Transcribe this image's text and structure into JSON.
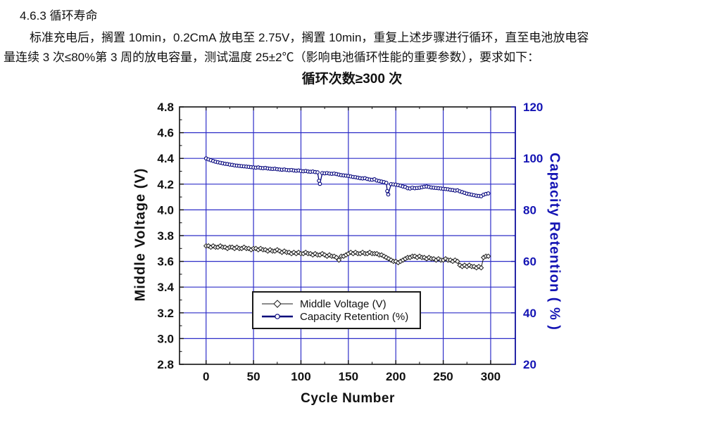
{
  "document": {
    "heading": "4.6.3 循环寿命",
    "body_line1": "标准充电后，搁置 10min，0.2CmA 放电至 2.75V，搁置 10min，重复上述步骤进行循环，直至电池放电容",
    "body_line2": "量连续 3 次≤80%第 3 周的放电容量，测试温度 25±2℃（影响电池循环性能的重要参数），要求如下："
  },
  "colors": {
    "background": "#ffffff",
    "text": "#111111",
    "grid": "#2e2ec8",
    "axis_blue": "#1414b4",
    "frame": "#111111",
    "series_voltage": "#1a1a1a",
    "series_capacity": "#00007a"
  },
  "chart_data": {
    "type": "line",
    "title": "循环次数≥300 次",
    "xlabel": "Cycle Number",
    "ylabel_left": "Middle Voltage (V)",
    "ylabel_right": "Capacity Retention ( % )",
    "grid": true,
    "legend_position": "inside-bottom-center",
    "x_axis": {
      "min": -28,
      "max": 326,
      "ticks": [
        "0",
        "50",
        "100",
        "150",
        "200",
        "250",
        "300"
      ],
      "tick_values": [
        0,
        50,
        100,
        150,
        200,
        250,
        300
      ],
      "minor_step": 25
    },
    "y_left": {
      "min": 2.8,
      "max": 4.8,
      "ticks": [
        "4.8",
        "4.6",
        "4.4",
        "4.2",
        "4.0",
        "3.8",
        "3.6",
        "3.4",
        "3.2",
        "3.0",
        "2.8"
      ],
      "tick_values": [
        4.8,
        4.6,
        4.4,
        4.2,
        4.0,
        3.8,
        3.6,
        3.4,
        3.2,
        3.0,
        2.8
      ],
      "minor_step": 0.1
    },
    "y_right": {
      "min": 20,
      "max": 120,
      "ticks": [
        "120",
        "100",
        "80",
        "60",
        "40",
        "20"
      ],
      "tick_values": [
        120,
        100,
        80,
        60,
        40,
        20
      ],
      "minor_step": 10
    },
    "series": [
      {
        "name": "Middle Voltage (V)",
        "axis": "left",
        "marker": "diamond",
        "color": "#1a1a1a",
        "points": [
          [
            0,
            3.72
          ],
          [
            2.5,
            3.72
          ],
          [
            5,
            3.71
          ],
          [
            7.5,
            3.72
          ],
          [
            10,
            3.71
          ],
          [
            12.5,
            3.71
          ],
          [
            15,
            3.72
          ],
          [
            17.5,
            3.71
          ],
          [
            20,
            3.71
          ],
          [
            22.5,
            3.7
          ],
          [
            25,
            3.71
          ],
          [
            27.5,
            3.71
          ],
          [
            30,
            3.7
          ],
          [
            32.5,
            3.71
          ],
          [
            35,
            3.7
          ],
          [
            37.5,
            3.7
          ],
          [
            40,
            3.71
          ],
          [
            42.5,
            3.7
          ],
          [
            45,
            3.7
          ],
          [
            47.5,
            3.69
          ],
          [
            50,
            3.7
          ],
          [
            52.5,
            3.7
          ],
          [
            55,
            3.69
          ],
          [
            57.5,
            3.7
          ],
          [
            60,
            3.69
          ],
          [
            62.5,
            3.69
          ],
          [
            65,
            3.68
          ],
          [
            67.5,
            3.69
          ],
          [
            70,
            3.68
          ],
          [
            72.5,
            3.68
          ],
          [
            75,
            3.69
          ],
          [
            77.5,
            3.68
          ],
          [
            80,
            3.67
          ],
          [
            82.5,
            3.68
          ],
          [
            85,
            3.67
          ],
          [
            87.5,
            3.67
          ],
          [
            90,
            3.66
          ],
          [
            92.5,
            3.67
          ],
          [
            95,
            3.66
          ],
          [
            97.5,
            3.67
          ],
          [
            100,
            3.66
          ],
          [
            102.5,
            3.66
          ],
          [
            105,
            3.67
          ],
          [
            107.5,
            3.66
          ],
          [
            110,
            3.66
          ],
          [
            112.5,
            3.65
          ],
          [
            115,
            3.66
          ],
          [
            117.5,
            3.65
          ],
          [
            120,
            3.65
          ],
          [
            122.5,
            3.66
          ],
          [
            125,
            3.65
          ],
          [
            127.5,
            3.64
          ],
          [
            130,
            3.65
          ],
          [
            132.5,
            3.64
          ],
          [
            135,
            3.64
          ],
          [
            137.5,
            3.63
          ],
          [
            140,
            3.61
          ],
          [
            142.5,
            3.64
          ],
          [
            145,
            3.64
          ],
          [
            147.5,
            3.65
          ],
          [
            150,
            3.66
          ],
          [
            152.5,
            3.67
          ],
          [
            155,
            3.66
          ],
          [
            157.5,
            3.67
          ],
          [
            160,
            3.66
          ],
          [
            162.5,
            3.66
          ],
          [
            165,
            3.67
          ],
          [
            167.5,
            3.66
          ],
          [
            170,
            3.66
          ],
          [
            172.5,
            3.67
          ],
          [
            175,
            3.66
          ],
          [
            177.5,
            3.66
          ],
          [
            180,
            3.66
          ],
          [
            182.5,
            3.65
          ],
          [
            185,
            3.65
          ],
          [
            187.5,
            3.64
          ],
          [
            190,
            3.63
          ],
          [
            192.5,
            3.62
          ],
          [
            195,
            3.61
          ],
          [
            197.5,
            3.6
          ],
          [
            200,
            3.6
          ],
          [
            202.5,
            3.59
          ],
          [
            205,
            3.6
          ],
          [
            207.5,
            3.61
          ],
          [
            210,
            3.62
          ],
          [
            212.5,
            3.63
          ],
          [
            215,
            3.63
          ],
          [
            217.5,
            3.64
          ],
          [
            220,
            3.64
          ],
          [
            222.5,
            3.63
          ],
          [
            225,
            3.64
          ],
          [
            227.5,
            3.63
          ],
          [
            230,
            3.63
          ],
          [
            232.5,
            3.62
          ],
          [
            235,
            3.63
          ],
          [
            237.5,
            3.62
          ],
          [
            240,
            3.62
          ],
          [
            242.5,
            3.61
          ],
          [
            245,
            3.62
          ],
          [
            247.5,
            3.61
          ],
          [
            250,
            3.61
          ],
          [
            252.5,
            3.62
          ],
          [
            255,
            3.61
          ],
          [
            257.5,
            3.61
          ],
          [
            260,
            3.6
          ],
          [
            262.5,
            3.61
          ],
          [
            265,
            3.6
          ],
          [
            267.5,
            3.57
          ],
          [
            270,
            3.56
          ],
          [
            272.5,
            3.57
          ],
          [
            275,
            3.56
          ],
          [
            277.5,
            3.57
          ],
          [
            280,
            3.56
          ],
          [
            282.5,
            3.56
          ],
          [
            285,
            3.55
          ],
          [
            287.5,
            3.56
          ],
          [
            290,
            3.55
          ],
          [
            292.5,
            3.63
          ],
          [
            295,
            3.64
          ],
          [
            297.5,
            3.64
          ]
        ]
      },
      {
        "name": "Capacity Retention (%)",
        "axis": "right",
        "marker": "circle",
        "color": "#00007a",
        "points": [
          [
            0,
            100
          ],
          [
            2.5,
            99.6
          ],
          [
            5,
            99.3
          ],
          [
            7.5,
            99
          ],
          [
            10,
            98.7
          ],
          [
            12.5,
            98.5
          ],
          [
            15,
            98.3
          ],
          [
            17.5,
            98.1
          ],
          [
            20,
            97.9
          ],
          [
            22.5,
            97.8
          ],
          [
            25,
            97.6
          ],
          [
            27.5,
            97.5
          ],
          [
            30,
            97.3
          ],
          [
            32.5,
            97.2
          ],
          [
            35,
            97.1
          ],
          [
            37.5,
            97
          ],
          [
            40,
            96.9
          ],
          [
            42.5,
            96.8
          ],
          [
            45,
            96.7
          ],
          [
            47.5,
            96.6
          ],
          [
            50,
            96.5
          ],
          [
            52.5,
            96.4
          ],
          [
            55,
            96.5
          ],
          [
            57.5,
            96.3
          ],
          [
            60,
            96.2
          ],
          [
            62.5,
            96.3
          ],
          [
            65,
            96.1
          ],
          [
            67.5,
            96
          ],
          [
            70,
            95.9
          ],
          [
            72.5,
            96
          ],
          [
            75,
            95.8
          ],
          [
            77.5,
            95.7
          ],
          [
            80,
            95.6
          ],
          [
            82.5,
            95.7
          ],
          [
            85,
            95.5
          ],
          [
            87.5,
            95.4
          ],
          [
            90,
            95.5
          ],
          [
            92.5,
            95.3
          ],
          [
            95,
            95.2
          ],
          [
            97.5,
            95.3
          ],
          [
            100,
            95.1
          ],
          [
            102.5,
            95
          ],
          [
            105,
            95.1
          ],
          [
            107.5,
            94.9
          ],
          [
            110,
            94.8
          ],
          [
            112.5,
            94.9
          ],
          [
            115,
            94.7
          ],
          [
            117.5,
            94.6
          ],
          [
            119,
            91.3
          ],
          [
            120,
            90.1
          ],
          [
            122.5,
            94.3
          ],
          [
            125,
            94.2
          ],
          [
            127.5,
            94.3
          ],
          [
            130,
            94.1
          ],
          [
            132.5,
            94
          ],
          [
            135,
            94.1
          ],
          [
            137.5,
            93.9
          ],
          [
            140,
            93.7
          ],
          [
            142.5,
            93.5
          ],
          [
            145,
            93.4
          ],
          [
            147.5,
            93.3
          ],
          [
            150,
            93.2
          ],
          [
            152.5,
            93
          ],
          [
            155,
            92.8
          ],
          [
            157.5,
            92.7
          ],
          [
            160,
            92.5
          ],
          [
            162.5,
            92.3
          ],
          [
            165,
            92.2
          ],
          [
            167.5,
            92.3
          ],
          [
            170,
            92
          ],
          [
            172.5,
            91.8
          ],
          [
            175,
            91.7
          ],
          [
            177.5,
            91.9
          ],
          [
            180,
            91.4
          ],
          [
            182.5,
            91.2
          ],
          [
            185,
            91
          ],
          [
            187.5,
            90.8
          ],
          [
            190,
            90.5
          ],
          [
            191,
            87.3
          ],
          [
            192,
            86
          ],
          [
            195,
            90
          ],
          [
            197.5,
            89.9
          ],
          [
            200,
            89.8
          ],
          [
            202.5,
            89.6
          ],
          [
            205,
            89.4
          ],
          [
            207.5,
            89.1
          ],
          [
            210,
            88.9
          ],
          [
            212.5,
            88.4
          ],
          [
            215,
            88.3
          ],
          [
            217.5,
            88.6
          ],
          [
            220,
            88.4
          ],
          [
            222.5,
            88.5
          ],
          [
            225,
            88.6
          ],
          [
            227.5,
            88.8
          ],
          [
            230,
            89
          ],
          [
            232.5,
            89.1
          ],
          [
            235,
            88.9
          ],
          [
            237.5,
            88.7
          ],
          [
            240,
            88.6
          ],
          [
            242.5,
            88.5
          ],
          [
            245,
            88.4
          ],
          [
            247.5,
            88.3
          ],
          [
            250,
            88.2
          ],
          [
            252.5,
            88.1
          ],
          [
            255,
            88
          ],
          [
            257.5,
            87.8
          ],
          [
            260,
            87.7
          ],
          [
            262.5,
            87.5
          ],
          [
            265,
            87.6
          ],
          [
            267.5,
            87.2
          ],
          [
            270,
            86.9
          ],
          [
            272.5,
            86.6
          ],
          [
            275,
            86.3
          ],
          [
            277.5,
            86.1
          ],
          [
            280,
            85.9
          ],
          [
            282.5,
            85.7
          ],
          [
            285,
            85.5
          ],
          [
            287.5,
            85.4
          ],
          [
            290,
            85.3
          ],
          [
            292.5,
            85.9
          ],
          [
            295,
            86.2
          ],
          [
            297.5,
            86.4
          ]
        ]
      }
    ]
  }
}
